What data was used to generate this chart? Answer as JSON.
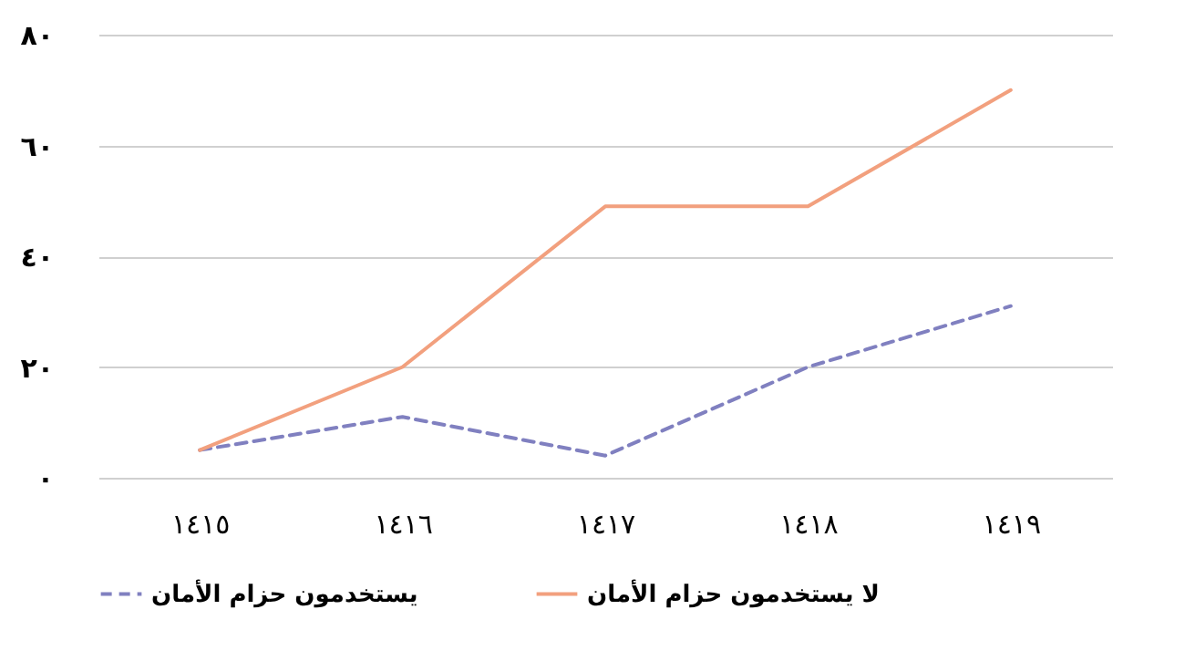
{
  "chart_data": {
    "type": "line",
    "categories": [
      "١٤١٥",
      "١٤١٦",
      "١٤١٧",
      "١٤١٨",
      "١٤١٩"
    ],
    "series": [
      {
        "name": "يستخدمون حزام الأمان",
        "color": "#8080c0",
        "line_style": "dashed",
        "values": [
          5,
          11,
          4,
          20,
          31
        ]
      },
      {
        "name": "لا يستخدمون حزام الأمان",
        "color": "#f2a07e",
        "line_style": "solid",
        "values": [
          5,
          20,
          49,
          49,
          70
        ]
      }
    ],
    "ylim": [
      0,
      80
    ],
    "yticks": [
      {
        "value": 0,
        "label": "٠"
      },
      {
        "value": 20,
        "label": "٢٠"
      },
      {
        "value": 40,
        "label": "٤٠"
      },
      {
        "value": 60,
        "label": "٦٠"
      },
      {
        "value": 80,
        "label": "٨٠"
      }
    ],
    "grid": "y",
    "legend": "bottom"
  }
}
